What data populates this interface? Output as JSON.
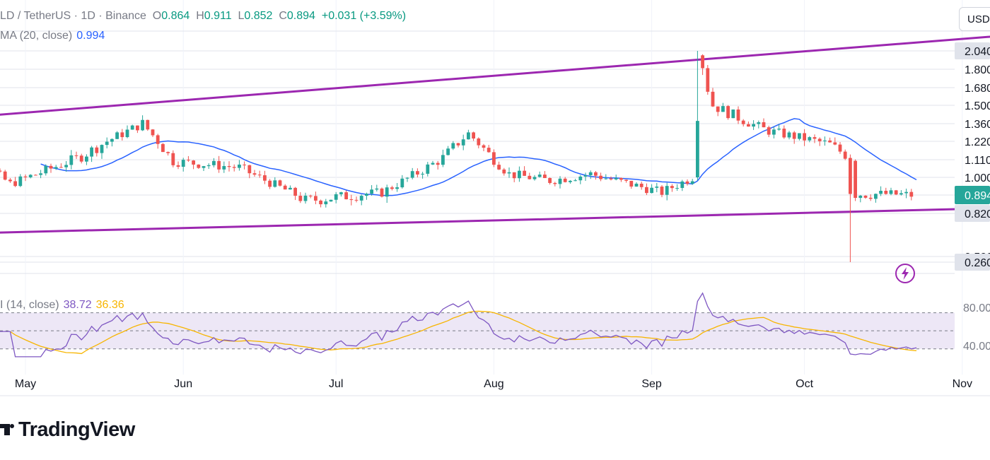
{
  "header": {
    "symbol": "LD / TetherUS · 1D · Binance",
    "o_label": "O",
    "o_value": "0.864",
    "h_label": "H",
    "h_value": "0.911",
    "l_label": "L",
    "l_value": "0.852",
    "c_label": "C",
    "c_value": "0.894",
    "change": "+0.031 (+3.59%)"
  },
  "ma_indicator": {
    "label": "MA (20, close)",
    "value": "0.994"
  },
  "rsi_indicator": {
    "label": "I (14, close)",
    "value": "38.72",
    "ma_value": "36.36"
  },
  "currency_button": "USD",
  "brand": "TradingView",
  "icons": {
    "flash": "lightning-bolt-icon",
    "logo": "tradingview-logo-icon"
  },
  "colors": {
    "up": "#26a69a",
    "down": "#ef5350",
    "ma": "#2962ff",
    "trendline": "#9c27b0",
    "rsi": "#7e57c2",
    "rsi_ma": "#f7b500",
    "rsi_band": "#ede7f6"
  },
  "chart_data": {
    "type": "candlestick",
    "scale": "log",
    "price_axis_labels": [
      "2.040",
      "1.800",
      "1.680",
      "1.500",
      "1.360",
      "1.220",
      "1.110",
      "1.000",
      "0.894",
      "0.820",
      "0.500",
      "0.260"
    ],
    "price_axis_highlights": {
      "last_price": "0.894",
      "drawing_points": [
        "2.040",
        "0.820",
        "0.260"
      ]
    },
    "x_tick_labels": [
      "May",
      "Jun",
      "Jul",
      "Aug",
      "Sep",
      "Oct",
      "Nov"
    ],
    "rsi_axis_labels": [
      "80.00",
      "40.00"
    ],
    "rsi_levels": {
      "upper": 70,
      "middle": 50,
      "lower": 30
    },
    "rsi_range": [
      20,
      90
    ],
    "trendlines": [
      {
        "name": "upper",
        "from": [
          "2024-04-17",
          1.4
        ],
        "to": [
          "2024-11-07",
          2.25
        ]
      },
      {
        "name": "lower",
        "from": [
          "2024-04-17",
          0.65
        ],
        "to": [
          "2024-11-07",
          0.84
        ]
      }
    ],
    "key_points": {
      "spike_high": [
        "2024-09-10",
        2.04
      ],
      "crash_low": [
        "2024-10-10",
        0.26
      ],
      "last_close": [
        "2024-10-23",
        0.894
      ]
    }
  }
}
